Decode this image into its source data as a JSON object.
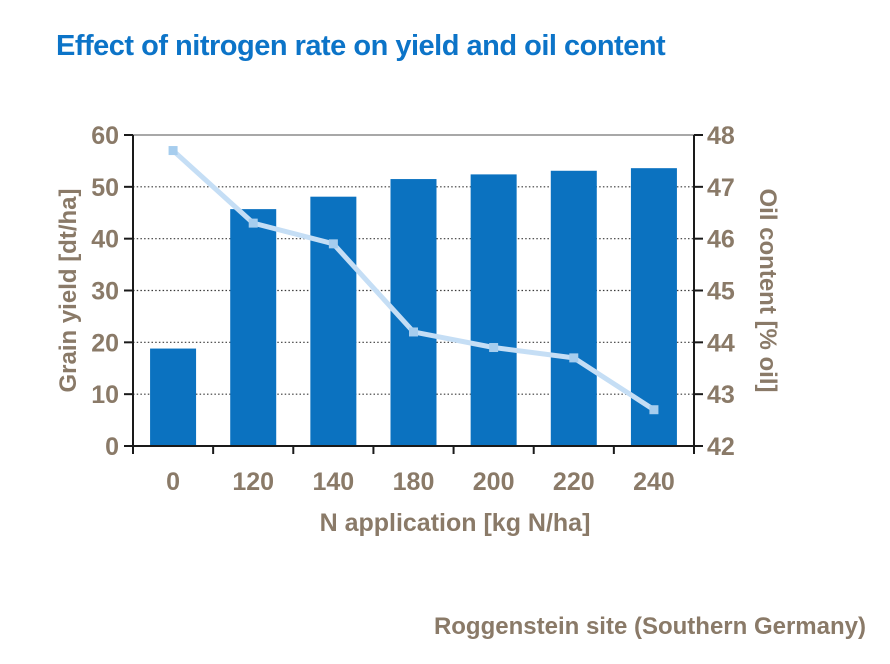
{
  "slide": {
    "title": "Effect of nitrogen rate on yield and oil content",
    "source_caption": "Roggenstein site (Southern Germany)"
  },
  "colors": {
    "background": "#ffffff",
    "title_text": "#0c74c8",
    "axis_text": "#8a7a68",
    "bar_fill": "#0b72c0",
    "line_stroke": "#c5def5",
    "marker_fill": "#a6cdee",
    "gridline": "#3a3a3a",
    "axis_line": "#1a1a1a",
    "plot_top_border": "#8c8c8c"
  },
  "chart_data": {
    "type": "bar",
    "subtype": "bar-line-combo-dual-axis",
    "title": "Effect of nitrogen rate on yield and oil content",
    "xlabel": "N application [kg N/ha]",
    "ylabel_left": "Grain yield [dt/ha]",
    "ylabel_right": "Oil content [% oil]",
    "categories": [
      "0",
      "120",
      "140",
      "180",
      "200",
      "220",
      "240"
    ],
    "series": [
      {
        "name": "Grain yield",
        "type": "bar",
        "axis": "left",
        "values": [
          18.8,
          45.7,
          48.1,
          51.5,
          52.4,
          53.1,
          53.6
        ]
      },
      {
        "name": "Oil content",
        "type": "line",
        "axis": "right",
        "values": [
          47.7,
          46.3,
          45.9,
          44.2,
          43.9,
          43.7,
          42.7
        ]
      }
    ],
    "ylim_left": [
      0,
      60
    ],
    "yticks_left": [
      "0",
      "10",
      "20",
      "30",
      "40",
      "50",
      "60"
    ],
    "ylim_right": [
      42,
      48
    ],
    "yticks_right": [
      "42",
      "43",
      "44",
      "45",
      "46",
      "47",
      "48"
    ],
    "grid": true,
    "gridline_style": "dotted",
    "legend": "none",
    "source": "Roggenstein site (Southern Germany)"
  }
}
